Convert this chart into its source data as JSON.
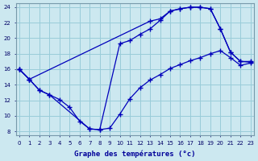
{
  "xlabel": "Graphe des températures (°c)",
  "background_color": "#cce8f0",
  "grid_color": "#99ccd9",
  "line_color": "#0000bb",
  "xlim_min": -0.3,
  "xlim_max": 23.3,
  "ylim_min": 7.5,
  "ylim_max": 24.5,
  "yticks": [
    8,
    10,
    12,
    14,
    16,
    18,
    20,
    22,
    24
  ],
  "xticks": [
    0,
    1,
    2,
    3,
    4,
    5,
    6,
    7,
    8,
    9,
    10,
    11,
    12,
    13,
    14,
    15,
    16,
    17,
    18,
    19,
    20,
    21,
    22,
    23
  ],
  "line1_x": [
    0,
    1,
    13,
    14,
    15,
    16,
    17,
    18,
    19,
    20,
    21,
    22,
    23
  ],
  "line1_y": [
    16.0,
    14.7,
    22.2,
    22.5,
    23.5,
    23.8,
    24.0,
    24.0,
    23.8,
    21.2,
    18.2,
    17.0,
    17.0
  ],
  "line2_x": [
    0,
    1,
    2,
    3,
    7,
    8,
    10,
    11,
    12,
    13,
    14,
    15,
    16,
    17,
    18,
    19,
    20,
    21,
    22,
    23
  ],
  "line2_y": [
    16.0,
    14.7,
    13.3,
    12.7,
    8.3,
    8.2,
    19.3,
    19.7,
    20.5,
    21.2,
    22.3,
    23.5,
    23.8,
    24.0,
    24.0,
    23.8,
    21.2,
    18.2,
    17.0,
    16.9
  ],
  "line3_x": [
    0,
    1,
    2,
    3,
    4,
    5,
    6,
    7,
    8,
    9,
    10,
    11,
    12,
    13,
    14,
    15,
    16,
    17,
    18,
    19,
    20,
    21,
    22,
    23
  ],
  "line3_y": [
    16.0,
    14.7,
    13.3,
    12.7,
    12.1,
    11.1,
    9.3,
    8.3,
    8.2,
    8.4,
    10.2,
    12.2,
    13.6,
    14.6,
    15.3,
    16.1,
    16.6,
    17.1,
    17.5,
    18.0,
    18.4,
    17.5,
    16.5,
    16.8
  ]
}
